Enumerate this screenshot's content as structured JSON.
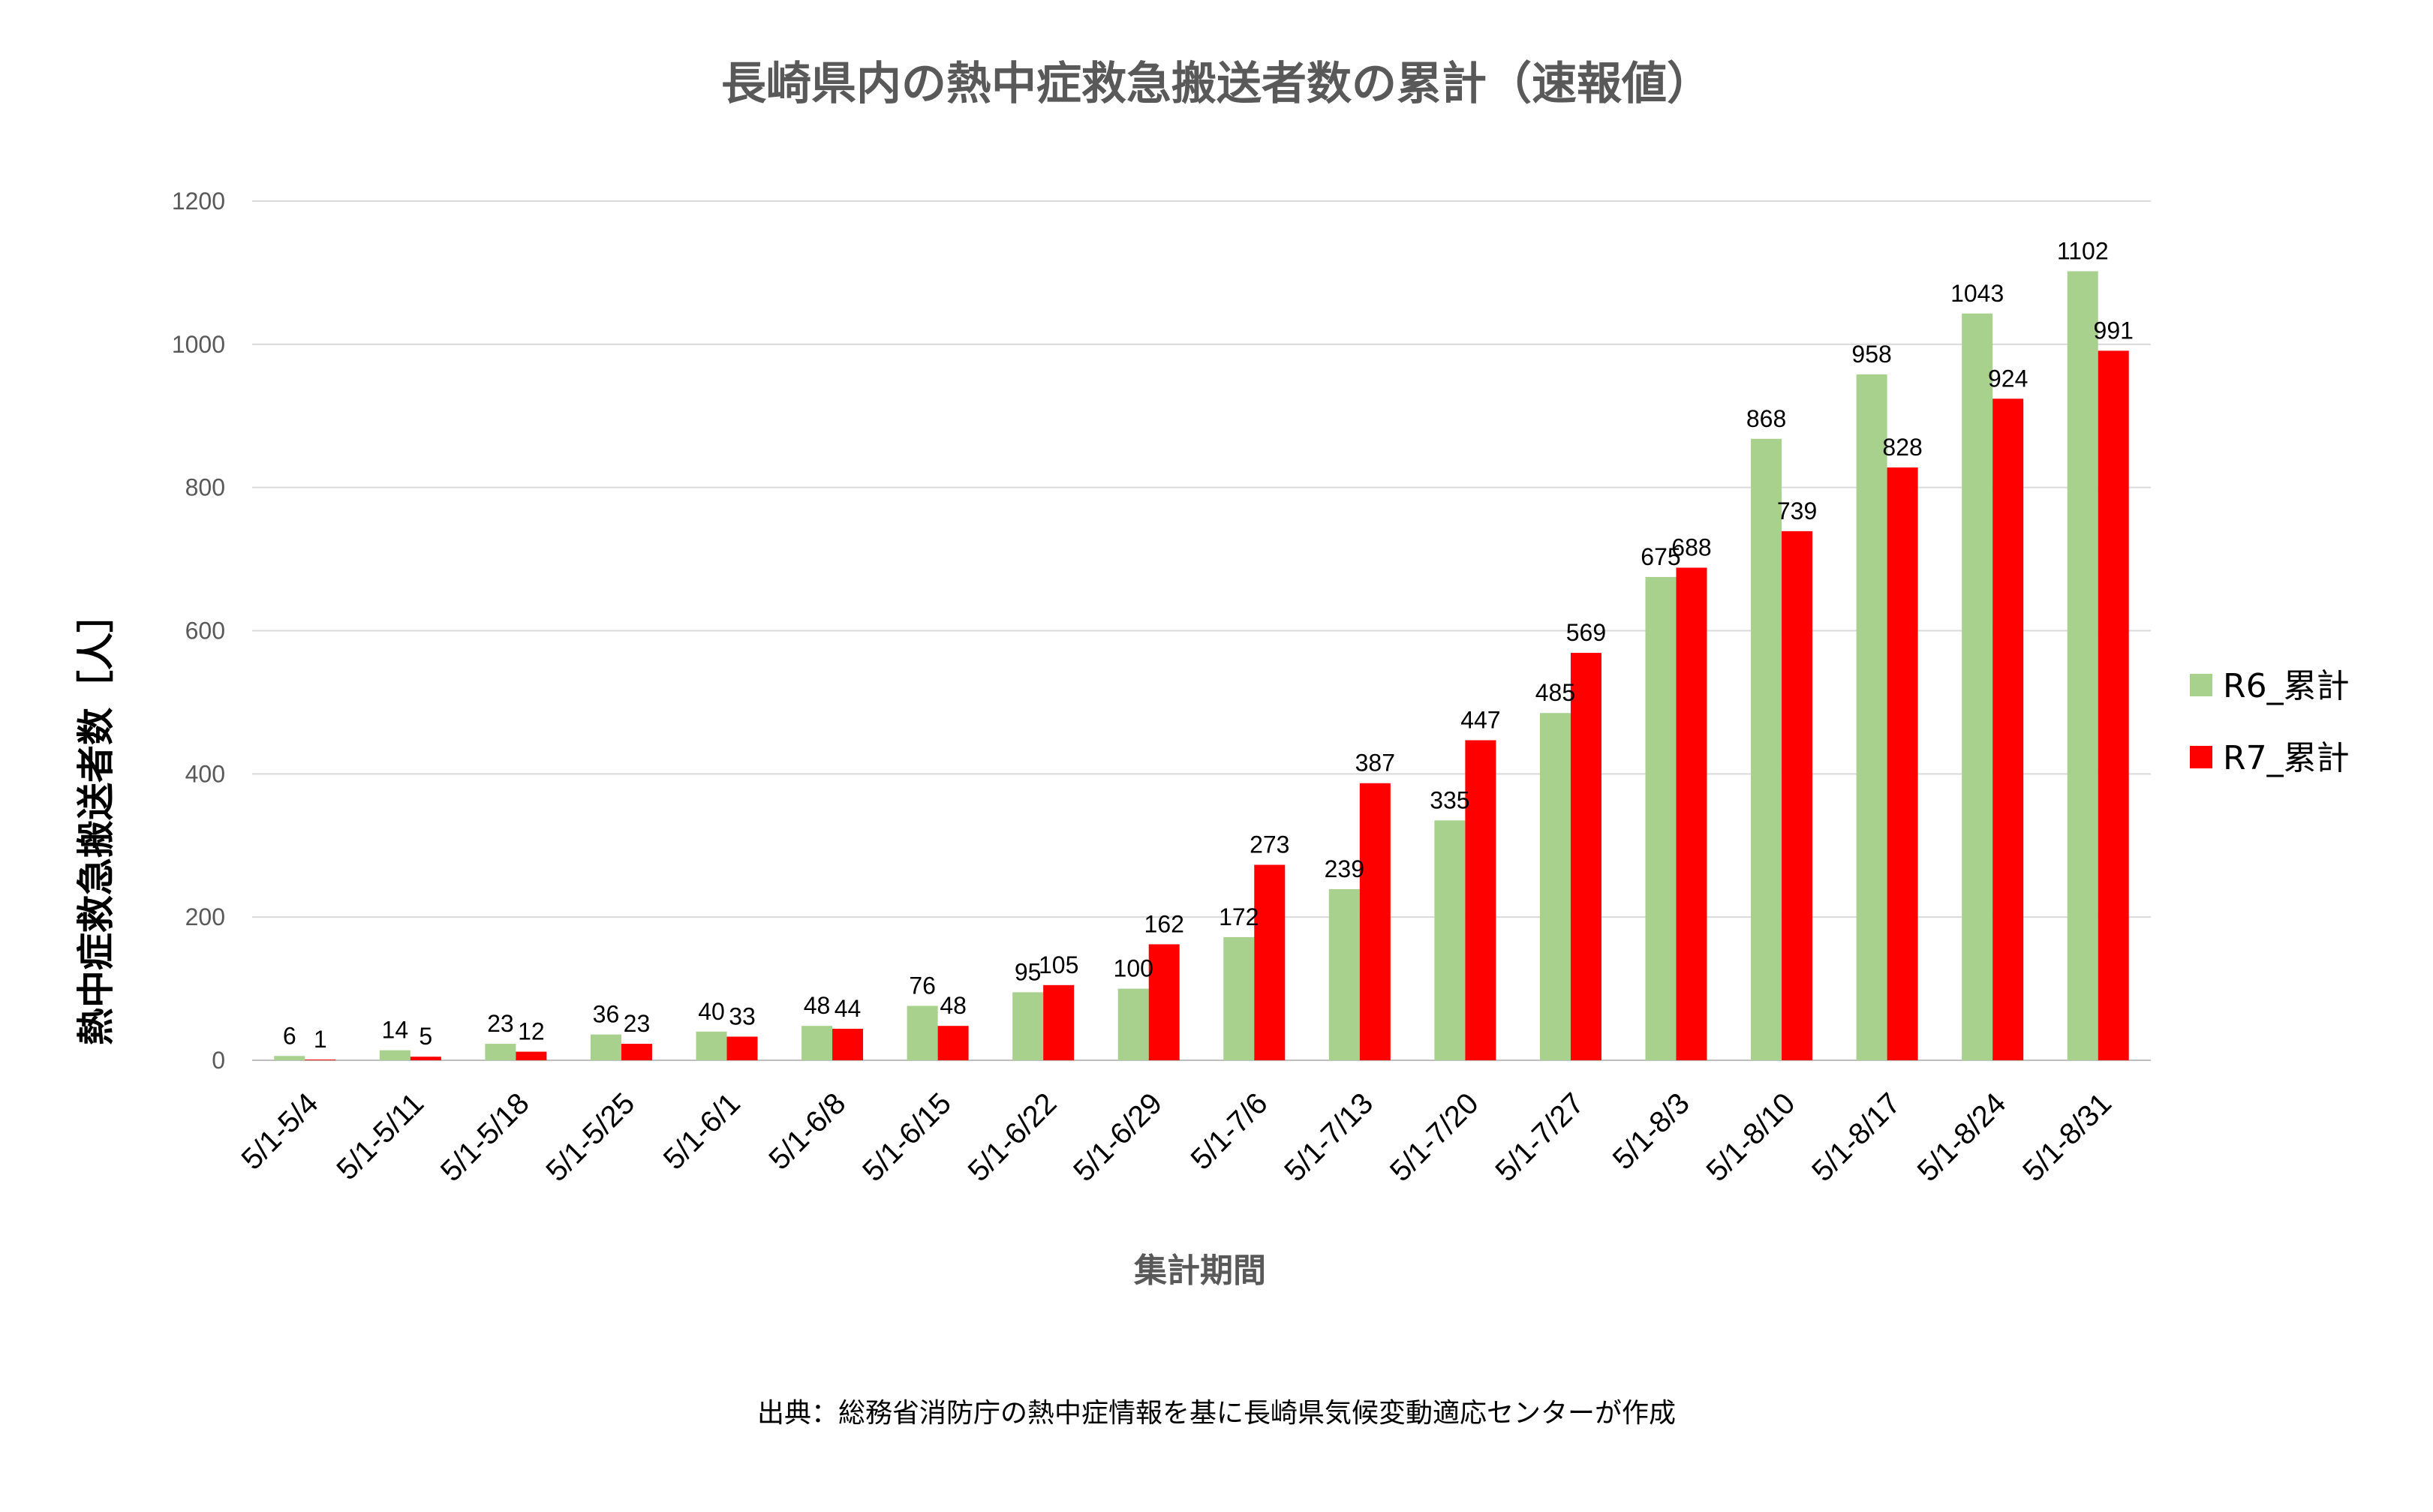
{
  "chart_data": {
    "type": "bar",
    "title": "長崎県内の熱中症救急搬送者数の累計（速報値）",
    "xlabel": "集計期間",
    "ylabel": "熱中症救急搬送者数［人］",
    "ylim": [
      0,
      1200
    ],
    "yticks": [
      0,
      200,
      400,
      600,
      800,
      1000,
      1200
    ],
    "grid": true,
    "legend_position": "right",
    "categories": [
      "5/1-5/4",
      "5/1-5/11",
      "5/1-5/18",
      "5/1-5/25",
      "5/1-6/1",
      "5/1-6/8",
      "5/1-6/15",
      "5/1-6/22",
      "5/1-6/29",
      "5/1-7/6",
      "5/1-7/13",
      "5/1-7/20",
      "5/1-7/27",
      "5/1-8/3",
      "5/1-8/10",
      "5/1-8/17",
      "5/1-8/24",
      "5/1-8/31"
    ],
    "series": [
      {
        "name": "R6_累計",
        "color": "#a9d18e",
        "values": [
          6,
          14,
          23,
          36,
          40,
          48,
          76,
          95,
          100,
          172,
          239,
          335,
          485,
          675,
          868,
          958,
          1043,
          1102
        ]
      },
      {
        "name": "R7_累計",
        "color": "#ff0000",
        "values": [
          1,
          5,
          12,
          23,
          33,
          44,
          48,
          105,
          162,
          273,
          387,
          447,
          569,
          688,
          739,
          828,
          924,
          991
        ]
      }
    ],
    "source_note": "出典：総務省消防庁の熱中症情報を基に長崎県気候変動適応センターが作成"
  }
}
